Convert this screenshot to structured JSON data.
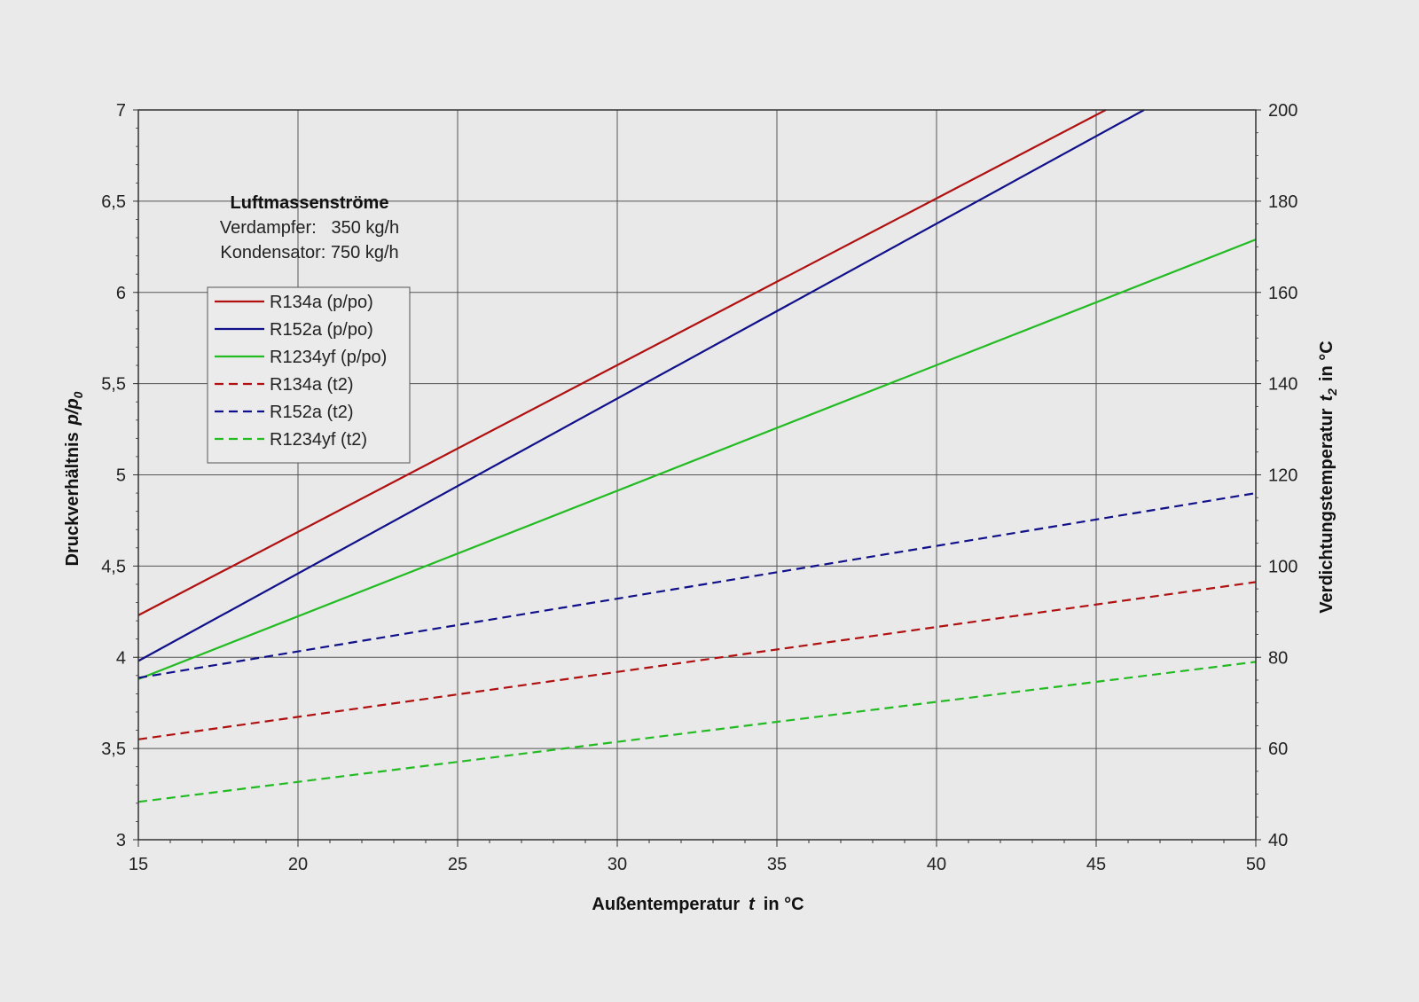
{
  "chart_data": {
    "type": "line",
    "xlabel_main": "Außentemperatur",
    "xlabel_var": "t",
    "xlabel_unit": "in °C",
    "ylabel_main": "Druckverhältnis",
    "ylabel_var": "p/p",
    "ylabel_sub": "0",
    "y2label_main": "Verdichtungstemperatur",
    "y2label_var": "t",
    "y2label_sub": "2",
    "y2label_unit": "in °C",
    "xlim": [
      15,
      50
    ],
    "ylim": [
      3,
      7
    ],
    "y2lim": [
      40,
      200
    ],
    "grid": true,
    "x_ticks": [
      15,
      20,
      25,
      30,
      35,
      40,
      45,
      50
    ],
    "y_ticks": [
      "3",
      "3,5",
      "4",
      "4,5",
      "5",
      "5,5",
      "6",
      "6,5",
      "7"
    ],
    "y2_ticks": [
      40,
      60,
      80,
      100,
      120,
      140,
      160,
      180,
      200
    ],
    "info": {
      "title": "Luftmassenströme",
      "line1": "Verdampfer:   350 kg/h",
      "line2": "Kondensator: 750 kg/h"
    },
    "legend_position": "upper-left",
    "series": [
      {
        "name": "R134a (p/po)",
        "color": "#b01010",
        "style": "solid",
        "axis": "left",
        "x": [
          15,
          45.3
        ],
        "y": [
          4.23,
          7.0
        ]
      },
      {
        "name": "R152a (p/po)",
        "color": "#10108a",
        "style": "solid",
        "axis": "left",
        "x": [
          15,
          46.5
        ],
        "y": [
          3.98,
          7.0
        ]
      },
      {
        "name": "R1234yf (p/po)",
        "color": "#22bb22",
        "style": "solid",
        "axis": "left",
        "x": [
          15,
          50
        ],
        "y": [
          3.88,
          6.29
        ]
      },
      {
        "name": "R134a (t2)",
        "color": "#b01010",
        "style": "dashed",
        "axis": "right",
        "x": [
          15,
          50
        ],
        "y": [
          62,
          96.5
        ]
      },
      {
        "name": "R152a (t2)",
        "color": "#10108a",
        "style": "dashed",
        "axis": "right",
        "x": [
          15,
          50
        ],
        "y": [
          75.5,
          116
        ]
      },
      {
        "name": "R1234yf (t2)",
        "color": "#22bb22",
        "style": "dashed",
        "axis": "right",
        "x": [
          15,
          50
        ],
        "y": [
          48.3,
          79
        ]
      }
    ]
  }
}
